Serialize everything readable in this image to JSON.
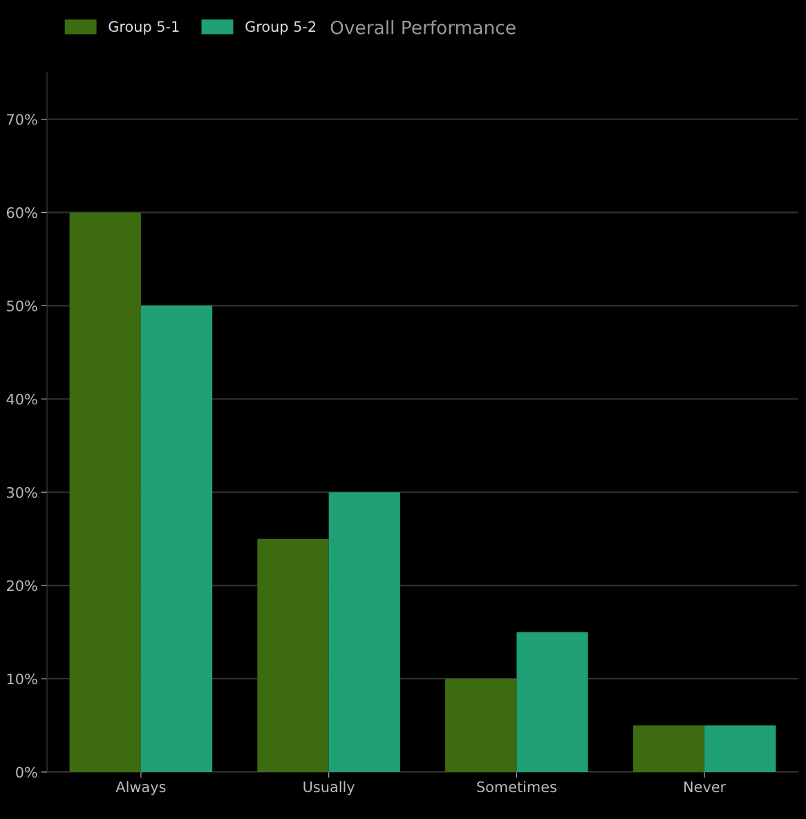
{
  "chart_data": {
    "type": "bar",
    "title": "Overall Performance",
    "categories": [
      "Always",
      "Usually",
      "Sometimes",
      "Never"
    ],
    "series": [
      {
        "name": "Group 5-1",
        "color": "#3d6b12",
        "values": [
          60,
          25,
          10,
          5
        ]
      },
      {
        "name": "Group 5-2",
        "color": "#1fa077",
        "values": [
          50,
          30,
          15,
          5
        ]
      }
    ],
    "ylim": [
      0,
      75
    ],
    "yticks": [
      {
        "value": 0,
        "label": "0%"
      },
      {
        "value": 10,
        "label": "10%"
      },
      {
        "value": 20,
        "label": "20%"
      },
      {
        "value": 30,
        "label": "30%"
      },
      {
        "value": 40,
        "label": "40%"
      },
      {
        "value": 50,
        "label": "50%"
      },
      {
        "value": 60,
        "label": "60%"
      },
      {
        "value": 70,
        "label": "70%"
      }
    ],
    "grid": "y",
    "legend": "top left"
  }
}
